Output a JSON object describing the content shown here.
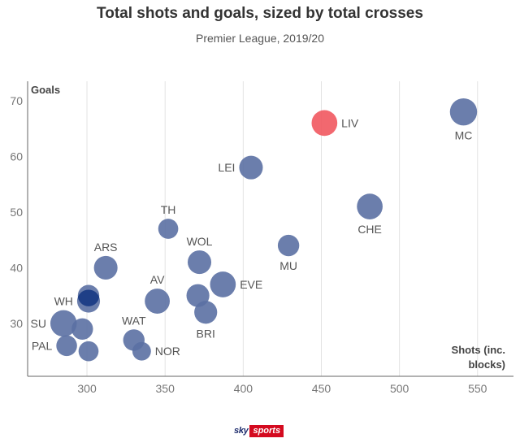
{
  "title": "Total shots and goals, sized by total crosses",
  "subtitle": "Premier League, 2019/20",
  "footer": {
    "brand_a": "sky",
    "brand_b": "sports"
  },
  "chart_data": {
    "type": "scatter",
    "title": "Total shots and goals, sized by total crosses",
    "subtitle": "Premier League, 2019/20",
    "xlabel": "Shots (inc. blocks)",
    "xlabel_lines": [
      "Shots (inc.",
      "blocks)"
    ],
    "ylabel": "Goals",
    "xlim": [
      262,
      573
    ],
    "ylim": [
      20.5,
      73.5
    ],
    "xticks": [
      300,
      350,
      400,
      450,
      500,
      550
    ],
    "yticks": [
      30,
      40,
      50,
      60,
      70
    ],
    "grid": "vertical",
    "colors": {
      "default": "#5b70a3",
      "highlight": "#f1585f",
      "overlap": "#1f3f87"
    },
    "points": [
      {
        "label": "MC",
        "x": 541,
        "y": 68,
        "size": 7.6,
        "label_pos": "below"
      },
      {
        "label": "LIV",
        "x": 452,
        "y": 66,
        "size": 7.2,
        "label_pos": "right",
        "highlight": true
      },
      {
        "label": "LEI",
        "x": 405,
        "y": 58,
        "size": 6.6,
        "label_pos": "left"
      },
      {
        "label": "CHE",
        "x": 481,
        "y": 51,
        "size": 7.2,
        "label_pos": "below"
      },
      {
        "label": "TH",
        "x": 352,
        "y": 47,
        "size": 5.6,
        "label_pos": "above"
      },
      {
        "label": "MU",
        "x": 429,
        "y": 44,
        "size": 6.0,
        "label_pos": "below"
      },
      {
        "label": "WOL",
        "x": 372,
        "y": 41,
        "size": 6.6,
        "label_pos": "above"
      },
      {
        "label": "ARS",
        "x": 312,
        "y": 40,
        "size": 6.6,
        "label_pos": "above"
      },
      {
        "label": "EVE",
        "x": 387,
        "y": 37,
        "size": 7.2,
        "label_pos": "right"
      },
      {
        "label": "AV",
        "x": 345,
        "y": 34,
        "size": 7.0,
        "label_pos": "above"
      },
      {
        "label": "",
        "x": 371,
        "y": 35,
        "size": 6.4,
        "label_pos": "none"
      },
      {
        "label": "BRI",
        "x": 376,
        "y": 32,
        "size": 6.4,
        "label_pos": "below"
      },
      {
        "label": "WH",
        "x": 301,
        "y": 34,
        "size": 6.4,
        "label_pos": "left"
      },
      {
        "label": "",
        "x": 301,
        "y": 35,
        "size": 6.0,
        "label_pos": "none"
      },
      {
        "label": "SU",
        "x": 285,
        "y": 30,
        "size": 7.4,
        "label_pos": "left"
      },
      {
        "label": "",
        "x": 297,
        "y": 29,
        "size": 6.0,
        "label_pos": "none"
      },
      {
        "label": "PAL",
        "x": 287,
        "y": 26,
        "size": 5.8,
        "label_pos": "left"
      },
      {
        "label": "",
        "x": 301,
        "y": 25,
        "size": 5.6,
        "label_pos": "none"
      },
      {
        "label": "WAT",
        "x": 330,
        "y": 27,
        "size": 6.0,
        "label_pos": "above"
      },
      {
        "label": "NOR",
        "x": 335,
        "y": 25,
        "size": 5.2,
        "label_pos": "right"
      }
    ],
    "overlaps": [
      {
        "x1": 301,
        "y1": 34,
        "r1": 6.4,
        "x2": 301,
        "y2": 35,
        "r2": 6.0
      }
    ]
  }
}
